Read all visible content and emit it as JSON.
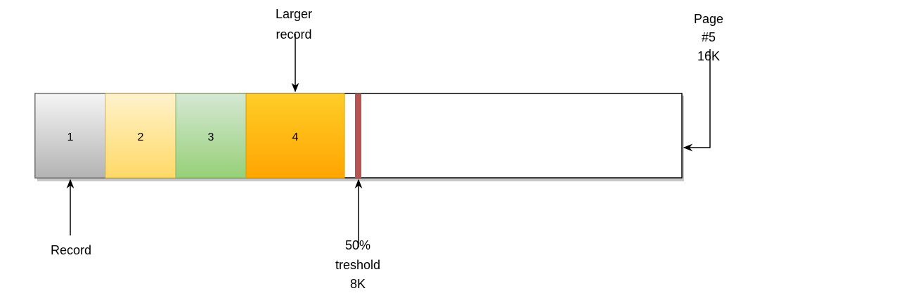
{
  "records": [
    {
      "label": "1"
    },
    {
      "label": "2"
    },
    {
      "label": "3"
    },
    {
      "label": "4"
    }
  ],
  "annotations": {
    "larger_record": [
      "Larger",
      "record"
    ],
    "page": [
      "Page",
      "#5",
      "16K"
    ],
    "record": "Record",
    "threshold": [
      "50%",
      "treshold",
      "8K"
    ]
  },
  "colors": {
    "record1_top": "#f5f5f5",
    "record1_bottom": "#b3b3b3",
    "record2_top": "#fff2cc",
    "record2_bottom": "#ffd966",
    "record3_top": "#d5e8d4",
    "record3_bottom": "#97d077",
    "record4_top": "#ffcd28",
    "record4_bottom": "#ffa500",
    "threshold_marker": "#b85450"
  }
}
